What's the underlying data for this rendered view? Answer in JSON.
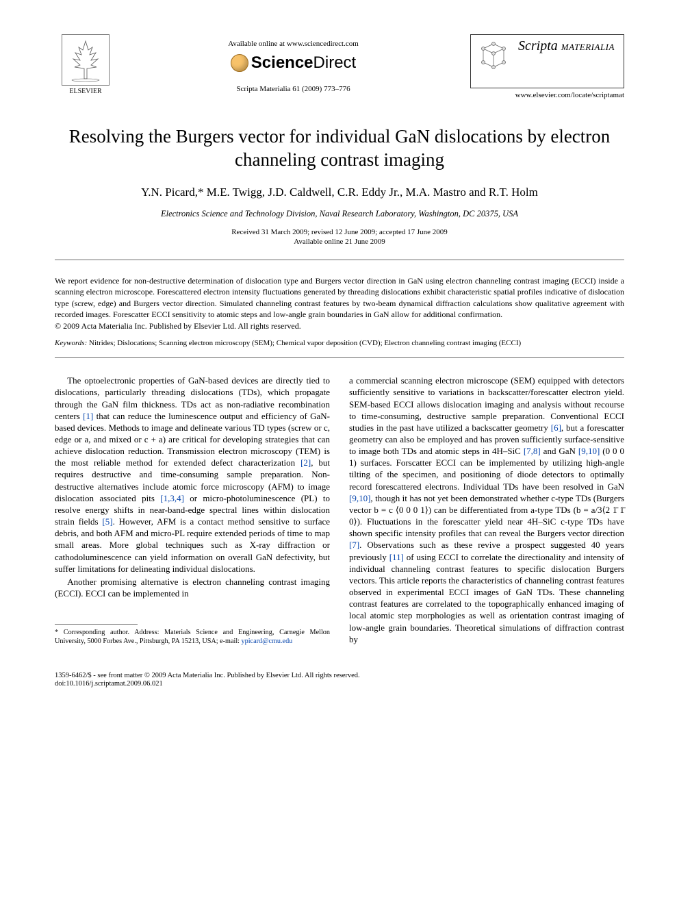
{
  "header": {
    "available_online": "Available online at www.sciencedirect.com",
    "sciencedirect_sci": "Science",
    "sciencedirect_dir": "Direct",
    "journal_info": "Scripta Materialia 61 (2009) 773–776",
    "elsevier_label": "ELSEVIER",
    "journal_scripta": "Scripta",
    "journal_materialia": "MATERIALIA",
    "locate_url": "www.elsevier.com/locate/scriptamat"
  },
  "title": "Resolving the Burgers vector for individual GaN dislocations by electron channeling contrast imaging",
  "authors": "Y.N. Picard,* M.E. Twigg, J.D. Caldwell, C.R. Eddy Jr., M.A. Mastro and R.T. Holm",
  "affiliation": "Electronics Science and Technology Division, Naval Research Laboratory, Washington, DC 20375, USA",
  "dates": {
    "received": "Received 31 March 2009; revised 12 June 2009; accepted 17 June 2009",
    "online": "Available online 21 June 2009"
  },
  "abstract": "We report evidence for non-destructive determination of dislocation type and Burgers vector direction in GaN using electron channeling contrast imaging (ECCI) inside a scanning electron microscope. Forescattered electron intensity fluctuations generated by threading dislocations exhibit characteristic spatial profiles indicative of dislocation type (screw, edge) and Burgers vector direction. Simulated channeling contrast features by two-beam dynamical diffraction calculations show qualitative agreement with recorded images. Forescatter ECCI sensitivity to atomic steps and low-angle grain boundaries in GaN allow for additional confirmation.",
  "copyright_abs": "© 2009 Acta Materialia Inc. Published by Elsevier Ltd. All rights reserved.",
  "keywords": {
    "label": "Keywords:",
    "text": "Nitrides; Dislocations; Scanning electron microscopy (SEM); Chemical vapor deposition (CVD); Electron channeling contrast imaging (ECCI)"
  },
  "body": {
    "col1": {
      "p1": "The optoelectronic properties of GaN-based devices are directly tied to dislocations, particularly threading dislocations (TDs), which propagate through the GaN film thickness. TDs act as non-radiative recombination centers [1] that can reduce the luminescence output and efficiency of GaN-based devices. Methods to image and delineate various TD types (screw or c, edge or a, and mixed or c + a) are critical for developing strategies that can achieve dislocation reduction. Transmission electron microscopy (TEM) is the most reliable method for extended defect characterization [2], but requires destructive and time-consuming sample preparation. Non-destructive alternatives include atomic force microscopy (AFM) to image dislocation associated pits [1,3,4] or micro-photoluminescence (PL) to resolve energy shifts in near-band-edge spectral lines within dislocation strain fields [5]. However, AFM is a contact method sensitive to surface debris, and both AFM and micro-PL require extended periods of time to map small areas. More global techniques such as X-ray diffraction or cathodoluminescence can yield information on overall GaN defectivity, but suffer limitations for delineating individual dislocations.",
      "p2": "Another promising alternative is electron channeling contrast imaging (ECCI). ECCI can be implemented in"
    },
    "col2": {
      "p1": "a commercial scanning electron microscope (SEM) equipped with detectors sufficiently sensitive to variations in backscatter/forescatter electron yield. SEM-based ECCI allows dislocation imaging and analysis without recourse to time-consuming, destructive sample preparation. Conventional ECCI studies in the past have utilized a backscatter geometry [6], but a forescatter geometry can also be employed and has proven sufficiently surface-sensitive to image both TDs and atomic steps in 4H–SiC [7,8] and GaN [9,10] (0 0 0 1) surfaces. Forscatter ECCI can be implemented by utilizing high-angle tilting of the specimen, and positioning of diode detectors to optimally record forescattered electrons. Individual TDs have been resolved in GaN [9,10], though it has not yet been demonstrated whether c-type TDs (Burgers vector b = c ⟨0 0 0 1⟩) can be differentiated from a-type TDs (b = a/3⟨2 1̄ 1̄ 0⟩). Fluctuations in the forescatter yield near 4H–SiC c-type TDs have shown specific intensity profiles that can reveal the Burgers vector direction [7]. Observations such as these revive a prospect suggested 40 years previously [11] of using ECCI to correlate the directionality and intensity of individual channeling contrast features to specific dislocation Burgers vectors. This article reports the characteristics of channeling contrast features observed in experimental ECCI images of GaN TDs. These channeling contrast features are correlated to the topographically enhanced imaging of local atomic step morphologies as well as orientation contrast imaging of low-angle grain boundaries. Theoretical simulations of diffraction contrast by"
    }
  },
  "footnote": {
    "corresponding": "* Corresponding author. Address: Materials Science and Engineering, Carnegie Mellon University, 5000 Forbes Ave., Pittsburgh, PA 15213, USA; e-mail: ",
    "email": "ypicard@cmu.edu"
  },
  "footer": {
    "copyright": "1359-6462/$ - see front matter © 2009 Acta Materialia Inc. Published by Elsevier Ltd. All rights reserved.",
    "doi": "doi:10.1016/j.scriptamat.2009.06.021"
  },
  "ref_color": "#0645ad"
}
